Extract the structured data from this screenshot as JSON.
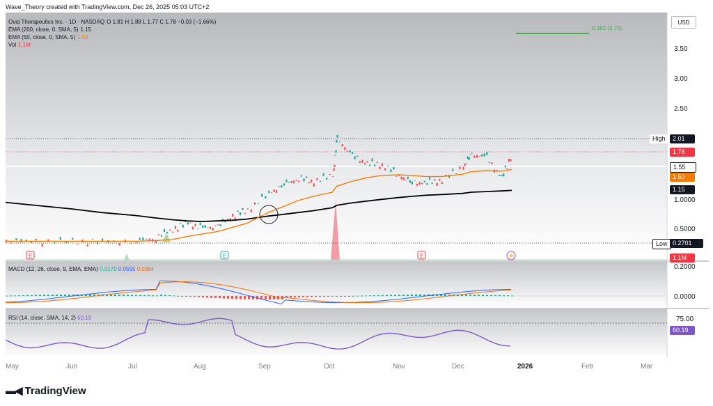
{
  "credit": "Wave_Theory created with TradingView.com, Dec 26, 2025 05:03 UTC+2",
  "legend": {
    "symbol": "Ovid Therapeutics Inc. · 1D · NASDAQ",
    "ohlc": "O 1.81  H 1.88  L 1.77  C 1.78  −0.03 (−1.66%)",
    "ema200_label": "EMA (200, close, 0, SMA, 5)",
    "ema200_value": "1.15",
    "ema50_label": "EMA (50, close, 0, SMA, 5)",
    "ema50_value": "1.50",
    "vol_label": "Vol",
    "vol_value": "1.1M"
  },
  "currency": "USD",
  "fib_label": "0.382 (3.75)",
  "price_axis": [
    "3.50",
    "3.00",
    "2.50",
    "1.0000",
    "0.5000"
  ],
  "tags": {
    "high_label": "High",
    "high_value": "2.01",
    "last": "1.78",
    "line": "1.55",
    "ema50": "1.50",
    "ema200": "1.15",
    "low_label": "Low",
    "low_value": "0.2701",
    "vol": "1.1M"
  },
  "events": [
    "E",
    "E",
    "E"
  ],
  "macd": {
    "label": "MACD (12, 26, close, 9, EMA, EMA)",
    "v1": "0.0170",
    "v2": "0.0555",
    "v3": "0.0384",
    "axis": [
      "0.2000",
      "0.0000"
    ]
  },
  "rsi": {
    "label": "RSI (14, close, SMA, 14, 2)",
    "value": "60.19",
    "axis": [
      "75.00"
    ]
  },
  "time_axis": [
    "May",
    "Jun",
    "Jul",
    "Aug",
    "Sep",
    "Oct",
    "Nov",
    "Dec",
    "2026",
    "Feb",
    "Mar"
  ],
  "brand": "TradingView",
  "colors": {
    "up": "#26a69a",
    "down": "#ef5350",
    "ema200": "#000000",
    "ema50": "#f57c00",
    "macd": "#2962ff",
    "signal": "#ff6d00",
    "rsi": "#7e57c2",
    "fib": "#4caf50"
  },
  "chart_data": {
    "type": "line",
    "symbol": "OVID",
    "ylim": [
      0.2,
      4.0
    ],
    "x": [
      "2025-05-01",
      "2025-05-15",
      "2025-06-01",
      "2025-06-15",
      "2025-07-01",
      "2025-07-10",
      "2025-07-18",
      "2025-07-25",
      "2025-08-01",
      "2025-08-08",
      "2025-08-15",
      "2025-08-22",
      "2025-09-01",
      "2025-09-08",
      "2025-09-15",
      "2025-09-22",
      "2025-10-01",
      "2025-10-03",
      "2025-10-10",
      "2025-10-17",
      "2025-10-24",
      "2025-11-01",
      "2025-11-07",
      "2025-11-14",
      "2025-11-21",
      "2025-12-01",
      "2025-12-05",
      "2025-12-12",
      "2025-12-19",
      "2025-12-24"
    ],
    "series": [
      {
        "name": "close",
        "values": [
          0.3,
          0.3,
          0.29,
          0.29,
          0.3,
          0.36,
          0.5,
          0.6,
          0.52,
          0.55,
          0.72,
          0.82,
          1.1,
          1.25,
          1.35,
          1.3,
          1.4,
          2.01,
          1.72,
          1.6,
          1.58,
          1.4,
          1.28,
          1.28,
          1.32,
          1.55,
          1.75,
          1.7,
          1.35,
          1.78
        ]
      },
      {
        "name": "EMA (50, close, 0, SMA, 5)",
        "values": [
          0.3,
          0.3,
          0.3,
          0.3,
          0.3,
          0.31,
          0.33,
          0.38,
          0.42,
          0.46,
          0.53,
          0.6,
          0.78,
          0.88,
          0.98,
          1.05,
          1.12,
          1.22,
          1.3,
          1.36,
          1.4,
          1.41,
          1.4,
          1.38,
          1.38,
          1.42,
          1.46,
          1.48,
          1.47,
          1.5
        ]
      },
      {
        "name": "EMA (200, close, 0, SMA, 5)",
        "values": [
          0.95,
          0.9,
          0.84,
          0.78,
          0.73,
          0.69,
          0.66,
          0.64,
          0.63,
          0.64,
          0.65,
          0.67,
          0.72,
          0.75,
          0.78,
          0.81,
          0.86,
          0.9,
          0.94,
          0.97,
          1.0,
          1.03,
          1.05,
          1.07,
          1.08,
          1.1,
          1.12,
          1.13,
          1.14,
          1.15
        ]
      }
    ],
    "levels": {
      "high": 2.01,
      "low": 0.2701,
      "line": 1.55,
      "fib_0382": 3.75
    }
  }
}
